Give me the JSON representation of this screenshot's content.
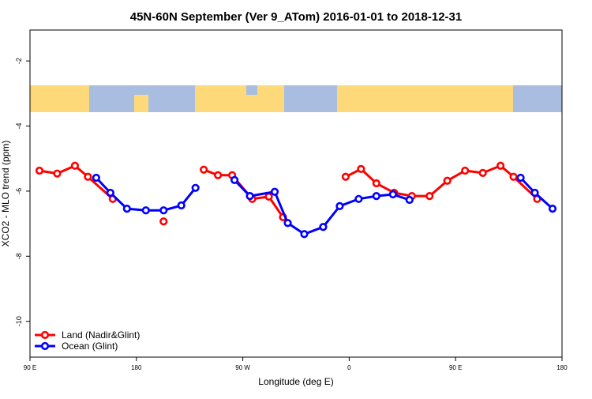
{
  "chart_data": {
    "type": "line",
    "title": "45N-60N September (Ver 9_ATom)   2016-01-01 to 2018-12-31",
    "x_label": "Longitude (deg E)",
    "y_label": "XCO2 - MLO trend (ppm)",
    "xlim": [
      90,
      540
    ],
    "ylim": [
      -11.1,
      -1.05
    ],
    "xticks": [
      {
        "value": 90,
        "label": "90 E"
      },
      180,
      {
        "value": 270,
        "label": "90 W"
      },
      {
        "value": 360,
        "label": "0"
      },
      {
        "value": 450,
        "label": "90 E"
      },
      {
        "value": 540,
        "label": "180"
      }
    ],
    "yticks": [
      -2,
      -4,
      -6,
      -8,
      -10
    ],
    "legend": "bottomleft",
    "series": [
      {
        "name": "Land (Nadir&Glint)",
        "color": "#ff0000",
        "x": [
          98,
          113,
          128,
          139,
          160,
          null,
          203,
          null,
          237,
          249,
          261,
          278,
          292,
          304,
          null,
          357,
          370,
          383,
          398,
          413,
          428,
          443,
          458,
          473,
          488,
          499,
          519
        ],
        "values": [
          -5.37,
          -5.46,
          -5.22,
          -5.56,
          -6.24,
          null,
          -6.93,
          null,
          -5.34,
          -5.51,
          -5.51,
          -6.24,
          -6.17,
          -6.8,
          null,
          -5.56,
          -5.32,
          -5.76,
          -6.05,
          -6.15,
          -6.15,
          -5.68,
          -5.37,
          -5.44,
          -5.22,
          -5.56,
          -6.24
        ]
      },
      {
        "name": "Ocean (Glint)",
        "color": "#0000ff",
        "x": [
          146,
          158,
          172,
          188,
          203,
          218,
          230,
          null,
          263,
          276,
          297,
          308,
          322,
          338,
          352,
          368,
          383,
          397,
          411,
          null,
          505,
          517,
          532
        ],
        "values": [
          -5.59,
          -6.05,
          -6.54,
          -6.59,
          -6.59,
          -6.44,
          -5.9,
          null,
          -5.66,
          -6.15,
          -6.02,
          -6.98,
          -7.32,
          -7.1,
          -6.46,
          -6.24,
          -6.15,
          -6.1,
          -6.27,
          null,
          -5.59,
          -6.05,
          -6.54
        ]
      }
    ]
  }
}
